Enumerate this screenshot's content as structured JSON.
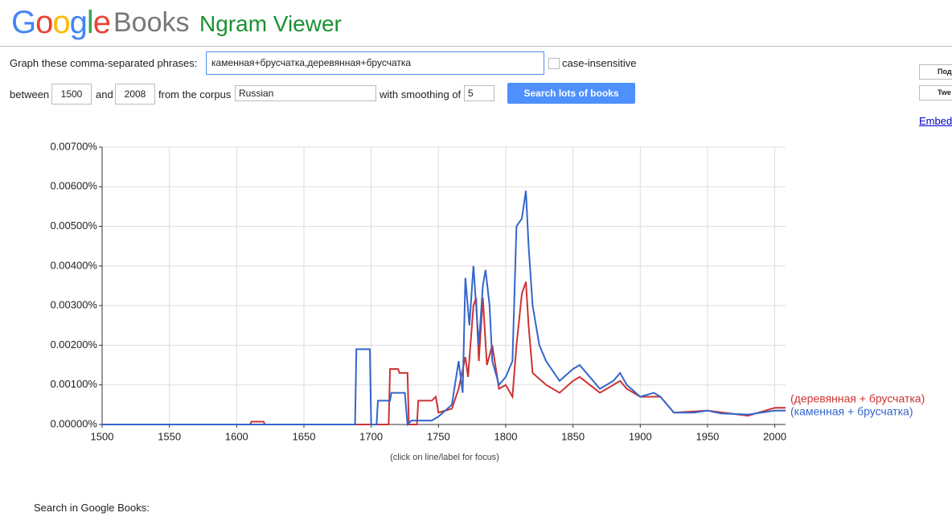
{
  "header": {
    "logo": "Google",
    "logo_colors": [
      "#4285f4",
      "#ea4335",
      "#fbbc05",
      "#4285f4",
      "#34a853",
      "#ea4335"
    ],
    "product": "Books",
    "app": "Ngram Viewer"
  },
  "form": {
    "phrases_label": "Graph these comma-separated phrases:",
    "phrases": "каменная+брусчатка,деревянная+брусчатка",
    "case_label": "case-insensitive",
    "between": "between",
    "start": "1500",
    "and": "and",
    "end": "2008",
    "corpus_label": "from the corpus",
    "corpus": "Russian",
    "smoothing_label": "with smoothing of",
    "smoothing": "5",
    "button": "Search lots of books"
  },
  "share": {
    "gplus": "Под",
    "twitter": "Twe",
    "embed": "Embed"
  },
  "chart_data": {
    "type": "line",
    "note": "(click on line/label for focus)",
    "xlim": [
      1500,
      2008
    ],
    "xticks": [
      1500,
      1550,
      1600,
      1650,
      1700,
      1750,
      1800,
      1850,
      1900,
      1950,
      2000
    ],
    "ylim": [
      0,
      0.007
    ],
    "yticks": [
      {
        "value": 0,
        "label": "0.00000%"
      },
      {
        "value": 0.001,
        "label": "0.00100%"
      },
      {
        "value": 0.002,
        "label": "0.00200%"
      },
      {
        "value": 0.003,
        "label": "0.00300%"
      },
      {
        "value": 0.004,
        "label": "0.00400%"
      },
      {
        "value": 0.005,
        "label": "0.00500%"
      },
      {
        "value": 0.006,
        "label": "0.00600%"
      },
      {
        "value": 0.007,
        "label": "0.00700%"
      }
    ],
    "grid": true,
    "series": [
      {
        "name": "(деревянная + брусчатка)",
        "color": "#cc3333",
        "x": [
          1500,
          1610,
          1611,
          1620,
          1621,
          1713,
          1714,
          1720,
          1721,
          1727,
          1728,
          1734,
          1735,
          1745,
          1748,
          1750,
          1760,
          1765,
          1770,
          1772,
          1776,
          1778,
          1780,
          1783,
          1786,
          1790,
          1795,
          1800,
          1805,
          1808,
          1812,
          1815,
          1817,
          1820,
          1830,
          1840,
          1850,
          1855,
          1870,
          1885,
          1890,
          1900,
          1915,
          1925,
          1950,
          1980,
          2000,
          2008
        ],
        "values": [
          0,
          0,
          7e-05,
          7e-05,
          0,
          0,
          0.0014,
          0.0014,
          0.0013,
          0.0013,
          0,
          0,
          0.0006,
          0.0006,
          0.0007,
          0.0003,
          0.0004,
          0.0009,
          0.0017,
          0.0012,
          0.003,
          0.0032,
          0.0016,
          0.0032,
          0.0015,
          0.002,
          0.0009,
          0.001,
          0.0007,
          0.002,
          0.0033,
          0.0036,
          0.0025,
          0.0013,
          0.001,
          0.0008,
          0.0011,
          0.0012,
          0.0008,
          0.0011,
          0.0009,
          0.0007,
          0.0007,
          0.0003,
          0.00035,
          0.00022,
          0.00042,
          0.00042
        ]
      },
      {
        "name": "(каменная + брусчатка)",
        "color": "#3366cc",
        "x": [
          1500,
          1688,
          1689,
          1699,
          1700,
          1704,
          1705,
          1714,
          1715,
          1725,
          1727,
          1730,
          1745,
          1750,
          1760,
          1765,
          1768,
          1770,
          1773,
          1776,
          1780,
          1783,
          1785,
          1788,
          1790,
          1795,
          1800,
          1805,
          1808,
          1812,
          1815,
          1817,
          1820,
          1825,
          1830,
          1840,
          1850,
          1855,
          1860,
          1870,
          1880,
          1885,
          1890,
          1900,
          1910,
          1915,
          1925,
          1940,
          1950,
          1960,
          1980,
          1990,
          2000,
          2008
        ],
        "values": [
          0,
          0,
          0.0019,
          0.0019,
          0,
          0,
          0.0006,
          0.0006,
          0.0008,
          0.0008,
          0,
          0.0001,
          0.0001,
          0.0002,
          0.0005,
          0.0016,
          0.0008,
          0.0037,
          0.0025,
          0.004,
          0.002,
          0.0035,
          0.0039,
          0.003,
          0.0016,
          0.001,
          0.0012,
          0.0016,
          0.005,
          0.0052,
          0.0059,
          0.0045,
          0.003,
          0.002,
          0.0016,
          0.0011,
          0.0014,
          0.0015,
          0.0013,
          0.0009,
          0.0011,
          0.0013,
          0.001,
          0.0007,
          0.0008,
          0.0007,
          0.0003,
          0.0003,
          0.00035,
          0.00028,
          0.00025,
          0.0003,
          0.00035,
          0.00035
        ]
      }
    ]
  },
  "footer": {
    "search_label": "Search in Google Books:"
  }
}
